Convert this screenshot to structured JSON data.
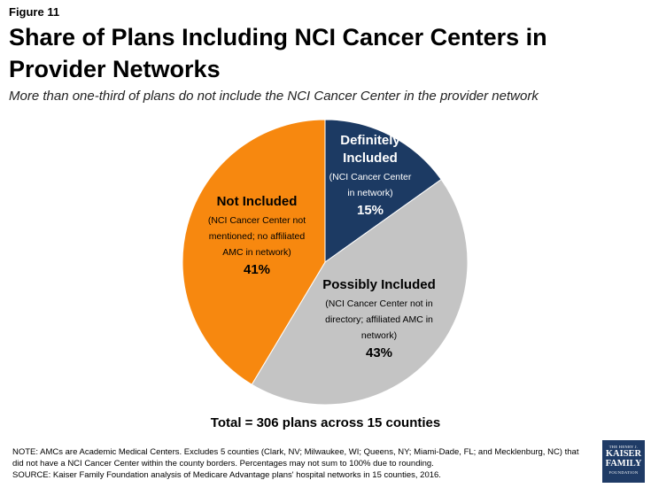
{
  "figure_label": "Figure 11",
  "title": "Share of Plans Including NCI Cancer Centers in Provider Networks",
  "subtitle": "More than one-third of plans do not include the NCI Cancer Center in the provider network",
  "chart_data": {
    "type": "pie",
    "title": "Share of Plans Including NCI Cancer Centers in Provider Networks",
    "slices": [
      {
        "name": "Definitely Included",
        "title_lines": [
          "Definitely",
          "Included"
        ],
        "detail_lines": [
          "(NCI Cancer Center",
          "in network)"
        ],
        "value": 15,
        "label": "15%",
        "color": "#1c3a63",
        "text_color": "#ffffff"
      },
      {
        "name": "Possibly Included",
        "title_lines": [
          "Possibly Included"
        ],
        "detail_lines": [
          "(NCI Cancer Center not in",
          "directory; affiliated AMC in",
          "network)"
        ],
        "value": 43,
        "label": "43%",
        "color": "#c4c4c4",
        "text_color": "#000000"
      },
      {
        "name": "Not Included",
        "title_lines": [
          "Not Included"
        ],
        "detail_lines": [
          "(NCI Cancer Center not",
          "mentioned; no affiliated",
          "AMC in network)"
        ],
        "value": 41,
        "label": "41%",
        "color": "#f7880f",
        "text_color": "#000000"
      }
    ]
  },
  "total_text": "Total = 306 plans across 15 counties",
  "note_text": "NOTE: AMCs are Academic Medical Centers. Excludes 5 counties (Clark, NV; Milwaukee, WI; Queens, NY; Miami-Dade, FL; and Mecklenburg, NC) that did not have a NCI Cancer Center within the county borders. Percentages may not sum to 100% due to rounding.",
  "source_text": "SOURCE: Kaiser Family Foundation analysis of Medicare Advantage plans' hospital networks in 15 counties, 2016.",
  "logo": {
    "line1": "THE HENRY J.",
    "line2": "KAISER",
    "line3": "FAMILY",
    "line4": "FOUNDATION"
  }
}
